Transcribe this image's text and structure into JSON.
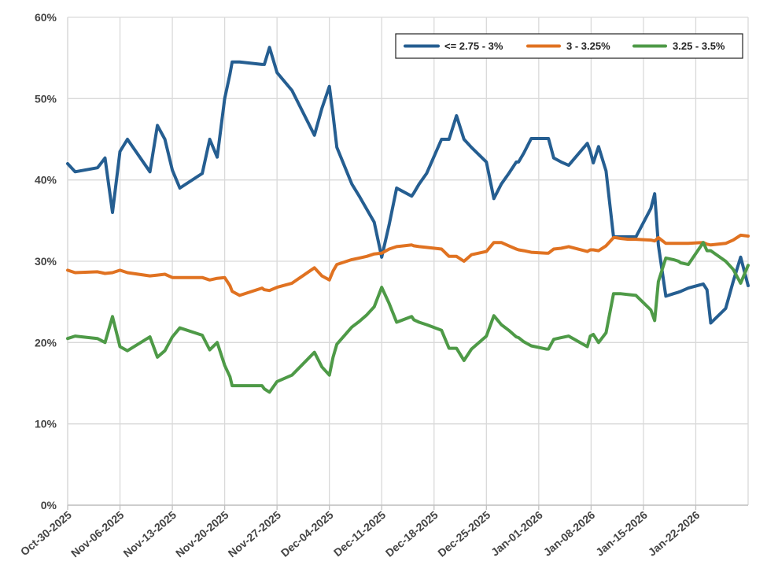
{
  "chart_data": {
    "type": "line",
    "title": "",
    "xlabel": "",
    "ylabel": "",
    "ylim": [
      0,
      60
    ],
    "y_ticks": [
      0,
      10,
      20,
      30,
      40,
      50,
      60
    ],
    "y_tick_labels": [
      "0%",
      "10%",
      "20%",
      "30%",
      "40%",
      "50%",
      "60%"
    ],
    "x_range_days": [
      0,
      91
    ],
    "x_tick_days": [
      0,
      7,
      14,
      21,
      28,
      35,
      42,
      49,
      56,
      63,
      70,
      77,
      84
    ],
    "x_tick_labels": [
      "Oct-30-2025",
      "Nov-06-2025",
      "Nov-13-2025",
      "Nov-20-2025",
      "Nov-27-2025",
      "Dec-04-2025",
      "Dec-11-2025",
      "Dec-18-2025",
      "Dec-25-2025",
      "Jan-01-2026",
      "Jan-08-2026",
      "Jan-15-2026",
      "Jan-22-2026"
    ],
    "x_unit": "days since Oct-30-2025",
    "grid": true,
    "legend_position": "top-right",
    "x": [
      0,
      1,
      4,
      5,
      6,
      7,
      8,
      11,
      12,
      13,
      14,
      15,
      18,
      19,
      20,
      21,
      21.7,
      22,
      23,
      26,
      26.3,
      27,
      28,
      30,
      33,
      34,
      35,
      35.5,
      36,
      38,
      39,
      40,
      41,
      42,
      43,
      44,
      46,
      46.3,
      47,
      48,
      50,
      51,
      52,
      53,
      54,
      56,
      57,
      58,
      59,
      60,
      60.3,
      61,
      62,
      64,
      64.3,
      65,
      66,
      67,
      69.5,
      69.9,
      70.3,
      71,
      72,
      73,
      73.3,
      74,
      75,
      76,
      78,
      78.5,
      79,
      80,
      81,
      81.7,
      82,
      83,
      85,
      85.5,
      86,
      88,
      89,
      90,
      91
    ],
    "series": [
      {
        "name": "<= 2.75 - 3%",
        "color": "#255e91",
        "values": [
          42.0,
          41.0,
          41.5,
          42.7,
          36.0,
          43.5,
          45.0,
          41.0,
          46.7,
          45.0,
          41.2,
          39.0,
          40.8,
          45.0,
          42.8,
          50.0,
          53.0,
          54.5,
          54.5,
          54.2,
          54.2,
          56.3,
          53.2,
          51.0,
          45.5,
          48.8,
          51.5,
          48.0,
          44.0,
          39.5,
          38.0,
          36.4,
          34.8,
          30.5,
          34.5,
          39.0,
          38.0,
          38.4,
          39.5,
          40.8,
          45.0,
          45.0,
          47.9,
          45.0,
          44.0,
          42.2,
          37.7,
          39.5,
          40.8,
          42.2,
          42.2,
          43.3,
          45.1,
          45.1,
          45.1,
          42.7,
          42.2,
          41.8,
          44.5,
          43.5,
          42.1,
          44.1,
          41.1,
          33.0,
          33.0,
          33.0,
          33.0,
          33.0,
          36.5,
          38.3,
          32.0,
          25.7,
          26.0,
          26.2,
          26.3,
          26.7,
          27.2,
          26.5,
          22.4,
          24.2,
          27.5,
          30.5,
          27.0
        ]
      },
      {
        "name": "3 - 3.25%",
        "color": "#e07221",
        "values": [
          28.9,
          28.6,
          28.7,
          28.5,
          28.6,
          28.9,
          28.6,
          28.2,
          28.3,
          28.4,
          28.0,
          28.0,
          28.0,
          27.7,
          27.9,
          28.0,
          27.0,
          26.3,
          25.8,
          26.7,
          26.5,
          26.4,
          26.8,
          27.3,
          29.2,
          28.2,
          27.7,
          28.8,
          29.6,
          30.2,
          30.4,
          30.6,
          30.9,
          31.0,
          31.5,
          31.8,
          32.0,
          31.9,
          31.8,
          31.7,
          31.5,
          30.6,
          30.6,
          30.0,
          30.8,
          31.2,
          32.3,
          32.3,
          31.9,
          31.5,
          31.4,
          31.3,
          31.1,
          31.0,
          31.0,
          31.5,
          31.6,
          31.8,
          31.2,
          31.4,
          31.4,
          31.3,
          31.9,
          32.9,
          32.9,
          32.8,
          32.7,
          32.7,
          32.6,
          32.5,
          32.9,
          32.2,
          32.2,
          32.2,
          32.2,
          32.2,
          32.3,
          32.1,
          32.0,
          32.2,
          32.6,
          33.2,
          33.1
        ]
      },
      {
        "name": "3.25 - 3.5%",
        "color": "#4e9a47",
        "values": [
          20.5,
          20.8,
          20.5,
          20.0,
          23.2,
          19.5,
          19.0,
          20.7,
          18.2,
          19.0,
          20.7,
          21.8,
          20.9,
          19.1,
          20.0,
          17.2,
          15.8,
          14.7,
          14.7,
          14.7,
          14.3,
          13.9,
          15.2,
          16.0,
          18.8,
          17.0,
          16.0,
          18.2,
          19.8,
          21.9,
          22.6,
          23.4,
          24.4,
          26.8,
          24.8,
          22.5,
          23.2,
          22.8,
          22.5,
          22.2,
          21.5,
          19.3,
          19.3,
          17.8,
          19.2,
          20.8,
          23.3,
          22.2,
          21.5,
          20.7,
          20.6,
          20.1,
          19.6,
          19.2,
          19.2,
          20.4,
          20.6,
          20.8,
          19.5,
          20.8,
          21.0,
          20.0,
          21.2,
          26.0,
          26.0,
          26.0,
          25.9,
          25.8,
          24.0,
          22.7,
          27.5,
          30.4,
          30.2,
          30.0,
          29.8,
          29.6,
          32.3,
          31.3,
          31.3,
          30.0,
          29.0,
          27.3,
          29.5
        ]
      }
    ]
  }
}
